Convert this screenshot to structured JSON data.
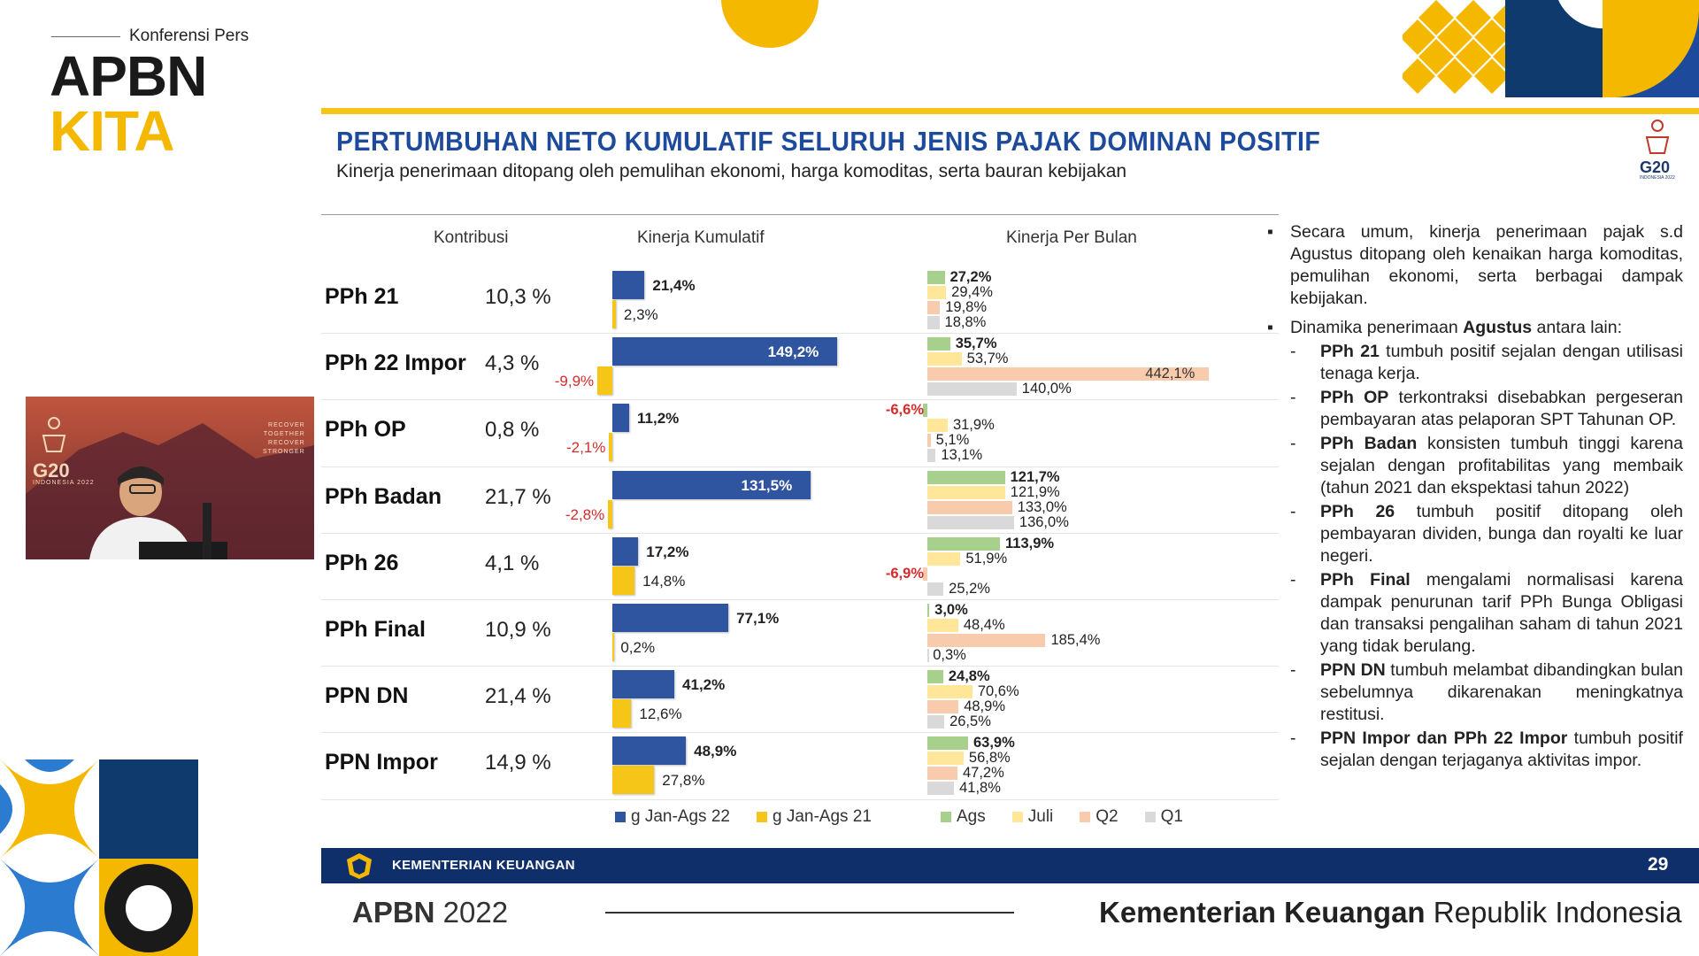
{
  "brand": {
    "sub": "Konferensi Pers",
    "apbn": "APBN",
    "kita": "KITA"
  },
  "video": {
    "logo_text": "G20",
    "logo_sub": "INDONESIA 2022",
    "tagline": [
      "RECOVER",
      "TOGETHER",
      "RECOVER",
      "STRONGER"
    ]
  },
  "slide": {
    "title": "PERTUMBUHAN NETO KUMULATIF SELURUH JENIS PAJAK DOMINAN POSITIF",
    "subtitle": "Kinerja penerimaan ditopang oleh pemulihan ekonomi, harga komoditas, serta bauran kebijakan",
    "g20_label": "G20",
    "g20_sub": "INDONESIA 2022",
    "col_headers": {
      "contrib": "Kontribusi",
      "cum": "Kinerja Kumulatif",
      "monthly": "Kinerja Per Bulan"
    }
  },
  "chart_data": [
    {
      "type": "bar",
      "title": "Kinerja Kumulatif",
      "orientation": "horizontal",
      "categories": [
        "PPh 21",
        "PPh 22 Impor",
        "PPh OP",
        "PPh Badan",
        "PPh 26",
        "PPh Final",
        "PPN DN",
        "PPN Impor"
      ],
      "contributions": [
        "10,3 %",
        "4,3 %",
        "0,8 %",
        "21,7 %",
        "4,1 %",
        "10,9 %",
        "21,4 %",
        "14,9 %"
      ],
      "series": [
        {
          "name": "g Jan-Ags 22",
          "color": "#2f54a0",
          "values": [
            21.4,
            149.2,
            11.2,
            131.5,
            17.2,
            77.1,
            41.2,
            48.9
          ],
          "labels": [
            "21,4%",
            "149,2%",
            "11,2%",
            "131,5%",
            "17,2%",
            "77,1%",
            "41,2%",
            "48,9%"
          ]
        },
        {
          "name": "g Jan-Ags 21",
          "color": "#f5c518",
          "values": [
            2.3,
            -9.9,
            -2.1,
            -2.8,
            14.8,
            0.2,
            12.6,
            27.8
          ],
          "labels": [
            "2,3%",
            "-9,9%",
            "-2,1%",
            "-2,8%",
            "14,8%",
            "0,2%",
            "12,6%",
            "27,8%"
          ]
        }
      ]
    },
    {
      "type": "bar",
      "title": "Kinerja Per Bulan",
      "orientation": "horizontal",
      "categories": [
        "PPh 21",
        "PPh 22 Impor",
        "PPh OP",
        "PPh Badan",
        "PPh 26",
        "PPh Final",
        "PPN DN",
        "PPN Impor"
      ],
      "series": [
        {
          "name": "Ags",
          "color": "#a8d08d",
          "values": [
            27.2,
            35.7,
            -6.6,
            121.7,
            113.9,
            3.0,
            24.8,
            63.9
          ],
          "labels": [
            "27,2%",
            "35,7%",
            "-6,6%",
            "121,7%",
            "113,9%",
            "3,0%",
            "24,8%",
            "63,9%"
          ]
        },
        {
          "name": "Juli",
          "color": "#ffe699",
          "values": [
            29.4,
            53.7,
            31.9,
            121.9,
            51.9,
            48.4,
            70.6,
            56.8
          ],
          "labels": [
            "29,4%",
            "53,7%",
            "31,9%",
            "121,9%",
            "51,9%",
            "48,4%",
            "70,6%",
            "56,8%"
          ]
        },
        {
          "name": "Q2",
          "color": "#f8cbad",
          "values": [
            19.8,
            442.1,
            5.1,
            133.0,
            -6.9,
            185.4,
            48.9,
            47.2
          ],
          "labels": [
            "19,8%",
            "442,1%",
            "5,1%",
            "133,0%",
            "-6,9%",
            "185,4%",
            "48,9%",
            "47,2%"
          ]
        },
        {
          "name": "Q1",
          "color": "#d9d9d9",
          "values": [
            18.8,
            140.0,
            13.1,
            136.0,
            25.2,
            0.3,
            26.5,
            41.8
          ],
          "labels": [
            "18,8%",
            "140,0%",
            "13,1%",
            "136,0%",
            "25,2%",
            "0,3%",
            "26,5%",
            "41,8%"
          ]
        }
      ]
    }
  ],
  "notes": {
    "b1": "Secara umum, kinerja penerimaan pajak s.d Agustus ditopang oleh kenaikan harga komoditas, pemulihan ekonomi, serta berbagai dampak kebijakan.",
    "b2_pre": "Dinamika penerimaan ",
    "b2_bold": "Agustus",
    "b2_post": " antara lain:",
    "items": [
      {
        "bold": "PPh 21",
        "text": " tumbuh positif sejalan dengan utilisasi tenaga kerja."
      },
      {
        "bold": "PPh OP",
        "text": " terkontraksi disebabkan pergeseran pembayaran atas pelaporan SPT Tahunan OP."
      },
      {
        "bold": "PPh Badan",
        "text": " konsisten tumbuh tinggi karena sejalan dengan profitabilitas yang membaik (tahun 2021 dan ekspektasi tahun 2022)"
      },
      {
        "bold": "PPh 26",
        "text": " tumbuh positif ditopang oleh pembayaran dividen, bunga dan royalti ke luar negeri."
      },
      {
        "bold": "PPh Final",
        "text": " mengalami normalisasi karena dampak penurunan tarif PPh Bunga Obligasi dan transaksi pengalihan saham di tahun 2021 yang tidak berulang."
      },
      {
        "bold": "PPN DN",
        "text": " tumbuh melambat dibandingkan bulan sebelumnya dikarenakan meningkatnya restitusi."
      },
      {
        "bold": "PPN Impor dan PPh 22 Impor",
        "text": " tumbuh positif sejalan dengan terjaganya aktivitas impor."
      }
    ]
  },
  "footer": {
    "org": "KEMENTERIAN KEUANGAN",
    "page": "29",
    "apbn_bold": "APBN",
    "apbn_year": " 2022",
    "kemen_bold": "Kementerian Keuangan",
    "kemen_rest": " Republik Indonesia"
  }
}
